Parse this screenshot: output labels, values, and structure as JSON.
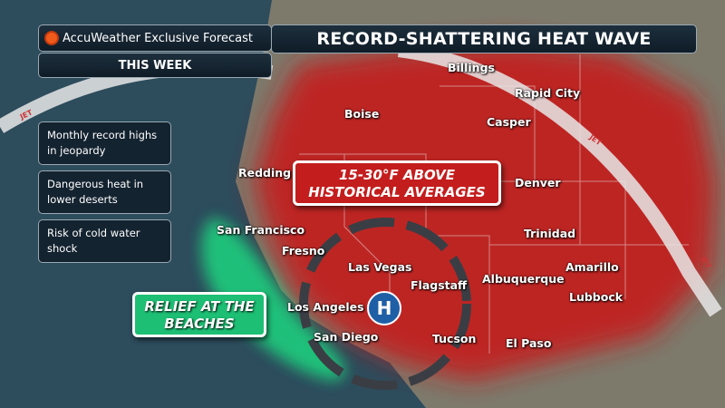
{
  "header": {
    "brand": "AccuWeather Exclusive Forecast",
    "title": "RECORD-SHATTERING HEAT WAVE",
    "period": "THIS WEEK"
  },
  "bullets": [
    {
      "text": "Monthly record highs in jeopardy"
    },
    {
      "text": "Dangerous heat in lower deserts"
    },
    {
      "text": "Risk of cold water shock"
    }
  ],
  "callouts": {
    "heat_line1": "15-30°F ABOVE",
    "heat_line2": "HISTORICAL AVERAGES",
    "relief_line1": "RELIEF AT THE",
    "relief_line2": "BEACHES"
  },
  "pressure": {
    "label": "H"
  },
  "jet_label": "JET",
  "cities": [
    "Billings",
    "Rapid City",
    "Boise",
    "Casper",
    "Redding",
    "Denver",
    "San Francisco",
    "Trinidad",
    "Fresno",
    "Las Vegas",
    "Amarillo",
    "Flagstaff",
    "Albuquerque",
    "Los Angeles",
    "Lubbock",
    "San Diego",
    "Tucson",
    "El Paso"
  ],
  "colors": {
    "heat": "#c41d1d",
    "relief": "#1dbf74",
    "ocean": "#2d4c5c",
    "high": "#1f5fa6"
  }
}
